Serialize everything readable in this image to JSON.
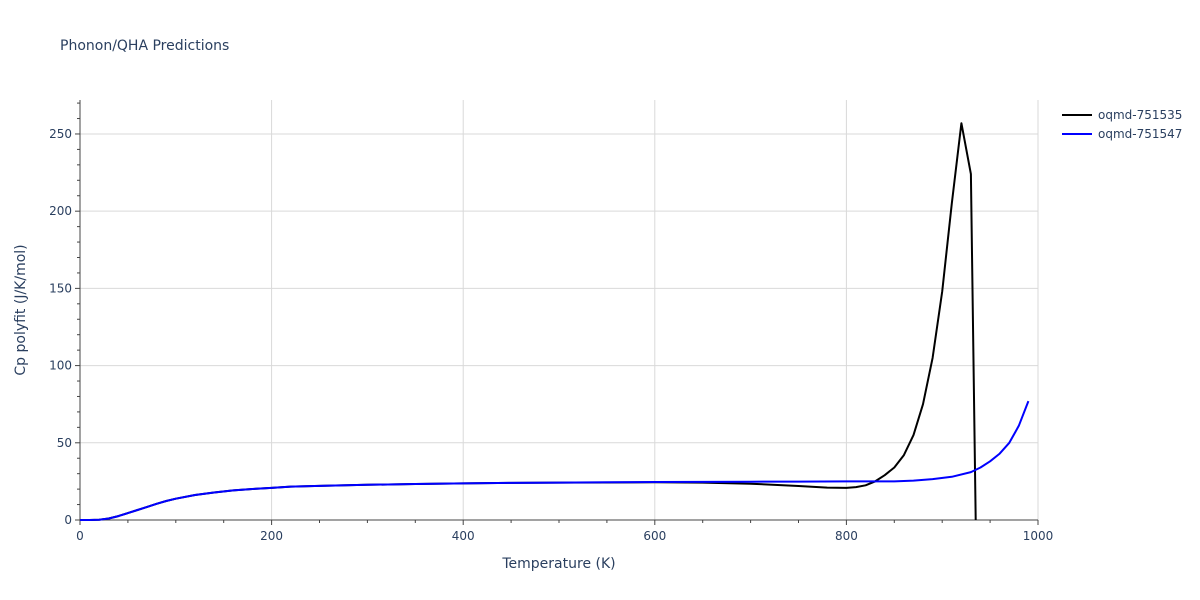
{
  "chart_data": {
    "type": "line",
    "title": "Phonon/QHA Predictions",
    "xlabel": "Temperature (K)",
    "ylabel": "Cp polyfit (J/K/mol)",
    "xlim": [
      0,
      1000
    ],
    "ylim": [
      0,
      272
    ],
    "xticks": [
      0,
      200,
      400,
      600,
      800,
      1000
    ],
    "yticks": [
      0,
      50,
      100,
      150,
      200,
      250
    ],
    "grid": true,
    "legend_position": "top-right",
    "series": [
      {
        "name": "oqmd-751535",
        "color": "#000000",
        "x": [
          0,
          10,
          20,
          30,
          40,
          50,
          60,
          70,
          80,
          90,
          100,
          120,
          140,
          160,
          180,
          200,
          220,
          250,
          300,
          350,
          400,
          450,
          500,
          550,
          600,
          650,
          700,
          750,
          780,
          800,
          810,
          820,
          830,
          840,
          850,
          860,
          870,
          880,
          890,
          900,
          910,
          920,
          930,
          935
        ],
        "y": [
          0,
          0,
          0.2,
          1,
          2.5,
          4.5,
          6.5,
          8.5,
          10.5,
          12.3,
          13.8,
          16.2,
          17.8,
          19.2,
          20.1,
          20.8,
          21.6,
          22.1,
          22.8,
          23.3,
          23.7,
          24.0,
          24.2,
          24.3,
          24.4,
          24.2,
          23.5,
          22.0,
          21.0,
          20.8,
          21.3,
          22.5,
          25,
          29,
          34,
          42,
          55,
          75,
          105,
          148,
          205,
          257,
          224,
          0
        ]
      },
      {
        "name": "oqmd-751547",
        "color": "#0000ff",
        "x": [
          0,
          10,
          20,
          30,
          40,
          50,
          60,
          70,
          80,
          90,
          100,
          120,
          140,
          160,
          180,
          200,
          220,
          250,
          300,
          350,
          400,
          450,
          500,
          550,
          600,
          650,
          700,
          750,
          800,
          850,
          870,
          890,
          910,
          930,
          940,
          950,
          960,
          970,
          980,
          990
        ],
        "y": [
          0,
          0,
          0.2,
          1,
          2.5,
          4.5,
          6.5,
          8.5,
          10.5,
          12.3,
          13.8,
          16.2,
          17.8,
          19.2,
          20.1,
          20.8,
          21.6,
          22.1,
          22.8,
          23.3,
          23.7,
          24.0,
          24.2,
          24.4,
          24.6,
          24.7,
          24.8,
          24.9,
          25.0,
          25.0,
          25.5,
          26.5,
          28,
          31,
          34,
          38,
          43,
          50,
          61,
          77
        ]
      }
    ]
  }
}
